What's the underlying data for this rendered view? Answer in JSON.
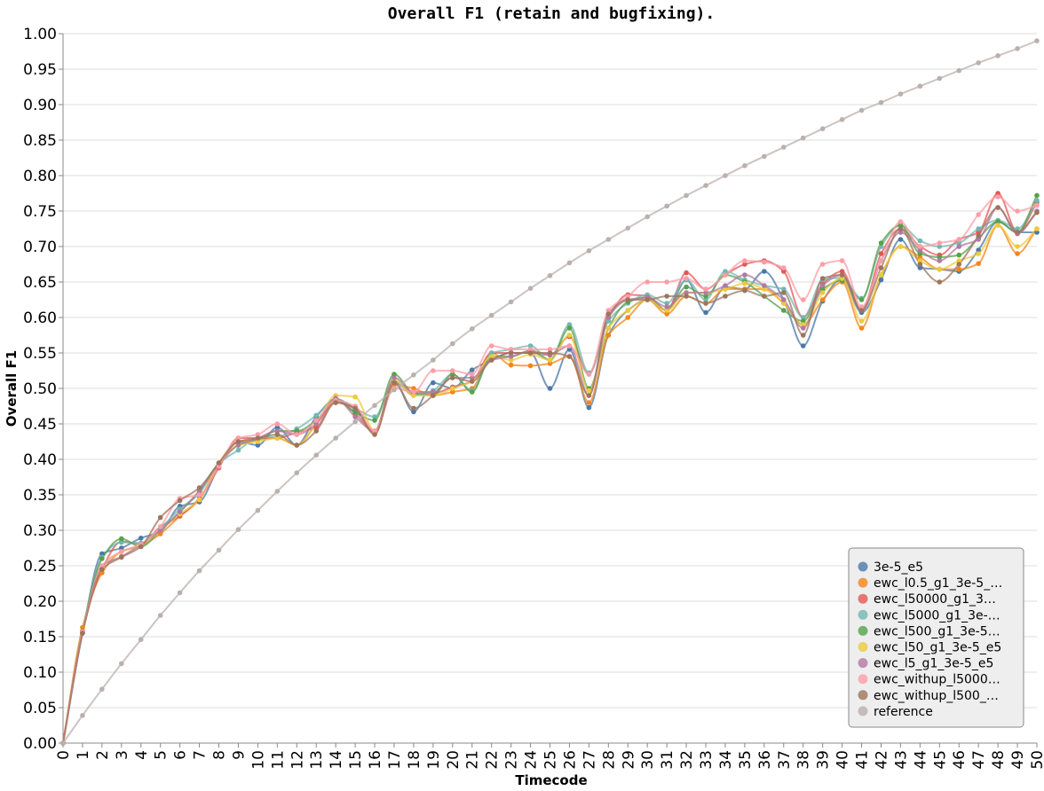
{
  "chart_data": {
    "type": "line",
    "title": "Overall F1 (retain and bugfixing).",
    "xlabel": "Timecode",
    "ylabel": "Overall F1",
    "xlim": [
      0,
      50
    ],
    "ylim": [
      0,
      1
    ],
    "x_ticks": [
      "0",
      "1",
      "2",
      "3",
      "4",
      "5",
      "6",
      "7",
      "8",
      "9",
      "10",
      "11",
      "12",
      "13",
      "14",
      "15",
      "16",
      "17",
      "18",
      "19",
      "20",
      "21",
      "22",
      "23",
      "24",
      "25",
      "26",
      "27",
      "28",
      "29",
      "30",
      "31",
      "32",
      "33",
      "34",
      "35",
      "36",
      "37",
      "38",
      "39",
      "40",
      "41",
      "42",
      "43",
      "44",
      "45",
      "46",
      "47",
      "48",
      "49",
      "50"
    ],
    "y_ticks": [
      "0.00",
      "0.05",
      "0.10",
      "0.15",
      "0.20",
      "0.25",
      "0.30",
      "0.35",
      "0.40",
      "0.45",
      "0.50",
      "0.55",
      "0.60",
      "0.65",
      "0.70",
      "0.75",
      "0.80",
      "0.85",
      "0.90",
      "0.95",
      "1.00"
    ],
    "grid": true,
    "legend_position": "bottom-right",
    "x": [
      0,
      1,
      2,
      3,
      4,
      5,
      6,
      7,
      8,
      9,
      10,
      11,
      12,
      13,
      14,
      15,
      16,
      17,
      18,
      19,
      20,
      21,
      22,
      23,
      24,
      25,
      26,
      27,
      28,
      29,
      30,
      31,
      32,
      33,
      34,
      35,
      36,
      37,
      38,
      39,
      40,
      41,
      42,
      43,
      44,
      45,
      46,
      47,
      48,
      49,
      50
    ],
    "series": [
      {
        "name": "3e-5_e5",
        "color": "#4c78a8",
        "values": [
          0.0,
          0.155,
          0.267,
          0.275,
          0.289,
          0.298,
          0.334,
          0.34,
          0.39,
          0.425,
          0.42,
          0.445,
          0.42,
          0.46,
          0.485,
          0.47,
          0.44,
          0.51,
          0.467,
          0.508,
          0.5,
          0.526,
          0.54,
          0.55,
          0.55,
          0.5,
          0.555,
          0.473,
          0.575,
          0.61,
          0.625,
          0.61,
          0.653,
          0.607,
          0.643,
          0.64,
          0.665,
          0.625,
          0.56,
          0.623,
          0.655,
          0.607,
          0.653,
          0.71,
          0.67,
          0.668,
          0.665,
          0.695,
          0.735,
          0.72,
          0.72
        ]
      },
      {
        "name": "ewc_l0.5_g1_3e-5_…",
        "color": "#f58518",
        "values": [
          0.0,
          0.163,
          0.24,
          0.27,
          0.278,
          0.295,
          0.32,
          0.343,
          0.395,
          0.425,
          0.428,
          0.43,
          0.42,
          0.45,
          0.48,
          0.472,
          0.437,
          0.505,
          0.5,
          0.49,
          0.495,
          0.5,
          0.55,
          0.533,
          0.532,
          0.535,
          0.545,
          0.48,
          0.575,
          0.6,
          0.625,
          0.605,
          0.63,
          0.62,
          0.64,
          0.64,
          0.64,
          0.62,
          0.59,
          0.625,
          0.65,
          0.585,
          0.66,
          0.7,
          0.685,
          0.668,
          0.668,
          0.676,
          0.73,
          0.69,
          0.725
        ]
      },
      {
        "name": "ewc_l50000_g1_3…",
        "color": "#e45756",
        "values": [
          0.0,
          0.158,
          0.245,
          0.284,
          0.281,
          0.305,
          0.32,
          0.345,
          0.388,
          0.43,
          0.43,
          0.43,
          0.438,
          0.445,
          0.485,
          0.465,
          0.438,
          0.51,
          0.493,
          0.493,
          0.502,
          0.51,
          0.55,
          0.55,
          0.55,
          0.547,
          0.573,
          0.52,
          0.6,
          0.632,
          0.63,
          0.61,
          0.663,
          0.64,
          0.66,
          0.675,
          0.68,
          0.665,
          0.6,
          0.647,
          0.665,
          0.61,
          0.69,
          0.725,
          0.7,
          0.688,
          0.71,
          0.72,
          0.775,
          0.72,
          0.762
        ]
      },
      {
        "name": "ewc_l5000_g1_3e-…",
        "color": "#72b7b2",
        "values": [
          0.0,
          0.157,
          0.262,
          0.283,
          0.282,
          0.303,
          0.33,
          0.352,
          0.394,
          0.413,
          0.43,
          0.432,
          0.443,
          0.462,
          0.485,
          0.472,
          0.46,
          0.51,
          0.49,
          0.497,
          0.52,
          0.497,
          0.55,
          0.555,
          0.56,
          0.54,
          0.59,
          0.522,
          0.595,
          0.62,
          0.632,
          0.62,
          0.653,
          0.625,
          0.665,
          0.653,
          0.645,
          0.64,
          0.6,
          0.653,
          0.656,
          0.627,
          0.7,
          0.73,
          0.708,
          0.7,
          0.705,
          0.725,
          0.737,
          0.725,
          0.765
        ]
      },
      {
        "name": "ewc_l500_g1_3e-5…",
        "color": "#54a24b",
        "values": [
          0.0,
          0.158,
          0.26,
          0.288,
          0.277,
          0.3,
          0.326,
          0.355,
          0.395,
          0.42,
          0.428,
          0.44,
          0.44,
          0.455,
          0.483,
          0.466,
          0.455,
          0.52,
          0.493,
          0.49,
          0.52,
          0.495,
          0.545,
          0.545,
          0.553,
          0.54,
          0.585,
          0.5,
          0.585,
          0.622,
          0.628,
          0.61,
          0.643,
          0.63,
          0.66,
          0.65,
          0.63,
          0.61,
          0.595,
          0.64,
          0.652,
          0.625,
          0.705,
          0.73,
          0.69,
          0.685,
          0.688,
          0.712,
          0.735,
          0.72,
          0.772
        ]
      },
      {
        "name": "ewc_l50_g1_3e-5_e5",
        "color": "#eeca3b",
        "values": [
          0.0,
          0.157,
          0.248,
          0.27,
          0.28,
          0.3,
          0.323,
          0.343,
          0.395,
          0.42,
          0.425,
          0.43,
          0.42,
          0.45,
          0.49,
          0.488,
          0.44,
          0.512,
          0.49,
          0.49,
          0.5,
          0.51,
          0.545,
          0.54,
          0.548,
          0.54,
          0.575,
          0.497,
          0.585,
          0.61,
          0.625,
          0.61,
          0.635,
          0.635,
          0.64,
          0.648,
          0.64,
          0.62,
          0.59,
          0.635,
          0.655,
          0.595,
          0.66,
          0.7,
          0.68,
          0.668,
          0.68,
          0.69,
          0.73,
          0.7,
          0.725
        ]
      },
      {
        "name": "ewc_l5_g1_3e-5_e5",
        "color": "#b279a2",
        "values": [
          0.0,
          0.155,
          0.25,
          0.263,
          0.28,
          0.3,
          0.326,
          0.356,
          0.393,
          0.42,
          0.43,
          0.44,
          0.435,
          0.45,
          0.486,
          0.46,
          0.44,
          0.515,
          0.495,
          0.495,
          0.515,
          0.515,
          0.54,
          0.545,
          0.553,
          0.548,
          0.56,
          0.49,
          0.6,
          0.625,
          0.628,
          0.615,
          0.635,
          0.635,
          0.645,
          0.66,
          0.645,
          0.625,
          0.585,
          0.645,
          0.66,
          0.61,
          0.68,
          0.72,
          0.695,
          0.68,
          0.7,
          0.71,
          0.755,
          0.718,
          0.75
        ]
      },
      {
        "name": "ewc_withup_l5000…",
        "color": "#ff9da6",
        "values": [
          0.0,
          0.157,
          0.25,
          0.27,
          0.28,
          0.305,
          0.345,
          0.35,
          0.39,
          0.43,
          0.435,
          0.45,
          0.435,
          0.455,
          0.483,
          0.475,
          0.44,
          0.5,
          0.495,
          0.525,
          0.525,
          0.52,
          0.56,
          0.555,
          0.555,
          0.555,
          0.56,
          0.52,
          0.61,
          0.63,
          0.65,
          0.65,
          0.655,
          0.64,
          0.66,
          0.68,
          0.678,
          0.67,
          0.625,
          0.675,
          0.68,
          0.615,
          0.68,
          0.735,
          0.7,
          0.705,
          0.71,
          0.745,
          0.77,
          0.75,
          0.758
        ]
      },
      {
        "name": "ewc_withup_l500_…",
        "color": "#9d755d",
        "values": [
          0.0,
          0.155,
          0.245,
          0.262,
          0.277,
          0.318,
          0.342,
          0.36,
          0.395,
          0.425,
          0.43,
          0.435,
          0.42,
          0.44,
          0.48,
          0.472,
          0.435,
          0.508,
          0.472,
          0.49,
          0.515,
          0.51,
          0.54,
          0.55,
          0.55,
          0.55,
          0.545,
          0.49,
          0.605,
          0.625,
          0.625,
          0.63,
          0.63,
          0.62,
          0.63,
          0.638,
          0.63,
          0.635,
          0.575,
          0.655,
          0.66,
          0.61,
          0.67,
          0.725,
          0.675,
          0.65,
          0.675,
          0.715,
          0.755,
          0.72,
          0.748
        ]
      },
      {
        "name": "reference",
        "color": "#bab0ac",
        "values": [
          0.0,
          0.039,
          0.076,
          0.112,
          0.146,
          0.18,
          0.212,
          0.243,
          0.272,
          0.301,
          0.328,
          0.355,
          0.381,
          0.406,
          0.43,
          0.453,
          0.476,
          0.498,
          0.519,
          0.54,
          0.563,
          0.584,
          0.603,
          0.622,
          0.641,
          0.659,
          0.677,
          0.694,
          0.71,
          0.726,
          0.742,
          0.757,
          0.772,
          0.786,
          0.8,
          0.814,
          0.827,
          0.84,
          0.853,
          0.866,
          0.879,
          0.892,
          0.903,
          0.915,
          0.926,
          0.937,
          0.948,
          0.959,
          0.969,
          0.979,
          0.99
        ]
      }
    ]
  }
}
